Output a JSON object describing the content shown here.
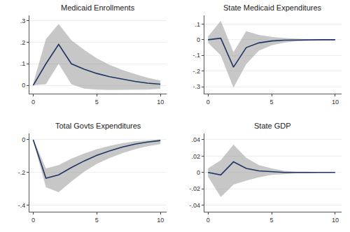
{
  "chart_data": [
    {
      "type": "line",
      "title": "Medicaid Enrollments",
      "x": [
        0,
        1,
        2,
        3,
        4,
        5,
        6,
        7,
        8,
        9,
        10
      ],
      "series": [
        {
          "type": "band",
          "color": "#999999",
          "lower": [
            0.0,
            0.005,
            0.1,
            0.005,
            -0.015,
            -0.02,
            -0.022,
            -0.022,
            -0.022,
            -0.02,
            -0.016
          ],
          "upper": [
            0.01,
            0.215,
            0.285,
            0.21,
            0.165,
            0.125,
            0.095,
            0.072,
            0.052,
            0.035,
            0.022
          ]
        },
        {
          "type": "line",
          "color": "#1f3464",
          "values": [
            0.0,
            0.1,
            0.19,
            0.1,
            0.075,
            0.055,
            0.04,
            0.028,
            0.018,
            0.01,
            0.005
          ]
        }
      ],
      "xlim": [
        -0.3,
        10.5
      ],
      "xticks": [
        0,
        5,
        10
      ],
      "ylim": [
        -0.04,
        0.325
      ],
      "yticks": [
        0,
        {
          "value": 0.1,
          "label": ".1"
        },
        {
          "value": 0.2,
          "label": ".2"
        },
        {
          "value": 0.3,
          "label": ".3"
        }
      ],
      "grid": "y"
    },
    {
      "type": "line",
      "title": "State Medicaid Expenditures",
      "x": [
        0,
        1,
        2,
        3,
        4,
        5,
        6,
        7,
        8,
        9,
        10
      ],
      "series": [
        {
          "type": "band",
          "color": "#999999",
          "lower": [
            -0.02,
            -0.1,
            -0.305,
            -0.155,
            -0.07,
            -0.035,
            -0.018,
            -0.01,
            -0.006,
            -0.003,
            -0.002
          ],
          "upper": [
            0.02,
            0.12,
            -0.08,
            0.055,
            0.03,
            0.018,
            0.01,
            0.006,
            0.003,
            0.002,
            0.001
          ]
        },
        {
          "type": "line",
          "color": "#1f3464",
          "values": [
            0.0,
            0.01,
            -0.175,
            -0.05,
            -0.02,
            -0.008,
            -0.003,
            -0.001,
            0.0,
            0.0,
            0.0
          ]
        }
      ],
      "xlim": [
        -0.3,
        10.5
      ],
      "xticks": [
        0,
        5,
        10
      ],
      "ylim": [
        -0.345,
        0.155
      ],
      "yticks": [
        {
          "value": -0.3,
          "label": "-.3"
        },
        {
          "value": -0.2,
          "label": "-.2"
        },
        {
          "value": -0.1,
          "label": "-.1"
        },
        0,
        {
          "value": 0.1,
          "label": ".1"
        }
      ],
      "grid": "y"
    },
    {
      "type": "line",
      "title": "Total Govts Expenditures",
      "x": [
        0,
        1,
        2,
        3,
        4,
        5,
        6,
        7,
        8,
        9,
        10
      ],
      "series": [
        {
          "type": "band",
          "color": "#999999",
          "lower": [
            -0.005,
            -0.29,
            -0.32,
            -0.255,
            -0.195,
            -0.148,
            -0.112,
            -0.082,
            -0.058,
            -0.04,
            -0.027
          ],
          "upper": [
            0.005,
            -0.175,
            -0.155,
            -0.115,
            -0.085,
            -0.058,
            -0.038,
            -0.022,
            -0.01,
            -0.003,
            0.002
          ]
        },
        {
          "type": "line",
          "color": "#1f3464",
          "values": [
            0.0,
            -0.235,
            -0.215,
            -0.17,
            -0.13,
            -0.095,
            -0.068,
            -0.045,
            -0.027,
            -0.014,
            -0.005
          ]
        }
      ],
      "xlim": [
        -0.3,
        10.5
      ],
      "xticks": [
        0,
        5,
        10
      ],
      "ylim": [
        -0.44,
        0.04
      ],
      "yticks": [
        {
          "value": -0.4,
          "label": "-.4"
        },
        {
          "value": -0.2,
          "label": "-.2"
        },
        0
      ],
      "grid": "y"
    },
    {
      "type": "line",
      "title": "State GDP",
      "x": [
        0,
        1,
        2,
        3,
        4,
        5,
        6,
        7,
        8,
        9,
        10
      ],
      "series": [
        {
          "type": "band",
          "color": "#999999",
          "lower": [
            -0.005,
            -0.03,
            -0.015,
            -0.01,
            -0.006,
            -0.003,
            -0.002,
            -0.001,
            -0.001,
            0.0,
            0.0
          ],
          "upper": [
            0.005,
            0.015,
            0.034,
            0.018,
            0.009,
            0.005,
            0.002,
            0.001,
            0.001,
            0.0,
            0.0
          ]
        },
        {
          "type": "line",
          "color": "#1f3464",
          "values": [
            0.0,
            -0.003,
            0.013,
            0.005,
            0.002,
            0.001,
            0.0,
            0.0,
            0.0,
            0.0,
            0.0
          ]
        }
      ],
      "xlim": [
        -0.3,
        10.5
      ],
      "xticks": [
        0,
        5,
        10
      ],
      "ylim": [
        -0.048,
        0.048
      ],
      "yticks": [
        {
          "value": -0.04,
          "label": "-.04"
        },
        {
          "value": -0.02,
          "label": "-.02"
        },
        0,
        {
          "value": 0.02,
          "label": ".02"
        },
        {
          "value": 0.04,
          "label": ".04"
        }
      ],
      "grid": "y"
    }
  ]
}
